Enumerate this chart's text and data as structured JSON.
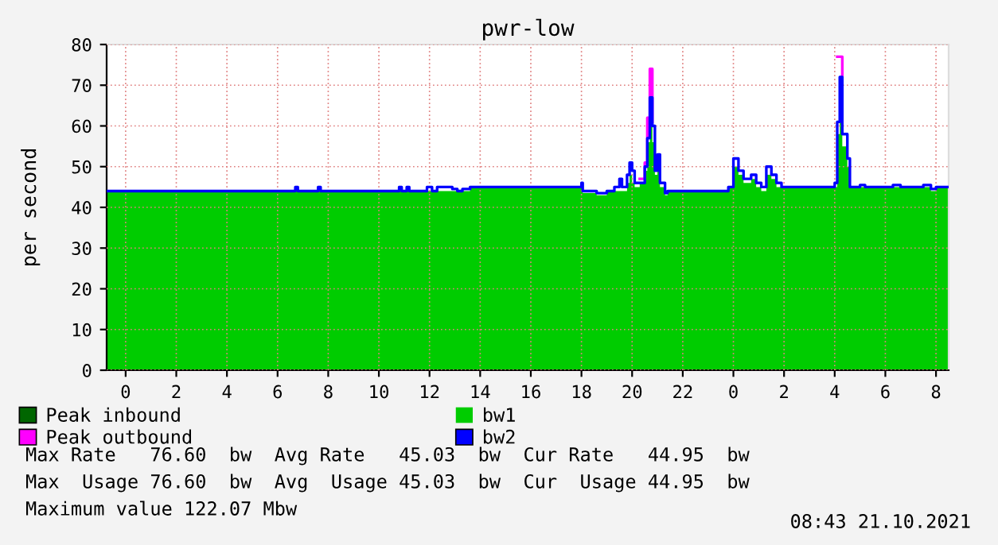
{
  "chart_data": {
    "type": "area",
    "title": "pwr-low",
    "ylabel": "per second",
    "x": [
      "2021-10-19T23:15",
      "2021-10-20T06:42",
      "2021-10-20T06:48",
      "2021-10-20T07:36",
      "2021-10-20T07:42",
      "2021-10-20T10:48",
      "2021-10-20T10:54",
      "2021-10-20T11:06",
      "2021-10-20T11:12",
      "2021-10-20T11:54",
      "2021-10-20T12:06",
      "2021-10-20T12:18",
      "2021-10-20T12:54",
      "2021-10-20T13:06",
      "2021-10-20T13:18",
      "2021-10-20T13:36",
      "2021-10-20T15:48",
      "2021-10-20T15:54",
      "2021-10-20T18:00",
      "2021-10-20T18:03",
      "2021-10-20T18:36",
      "2021-10-20T19:00",
      "2021-10-20T19:18",
      "2021-10-20T19:30",
      "2021-10-20T19:36",
      "2021-10-20T19:48",
      "2021-10-20T19:54",
      "2021-10-20T20:00",
      "2021-10-20T20:06",
      "2021-10-20T20:18",
      "2021-10-20T20:30",
      "2021-10-20T20:36",
      "2021-10-20T20:42",
      "2021-10-20T20:48",
      "2021-10-20T20:54",
      "2021-10-20T21:00",
      "2021-10-20T21:06",
      "2021-10-20T21:18",
      "2021-10-20T21:24",
      "2021-10-20T23:48",
      "2021-10-21T00:00",
      "2021-10-21T00:12",
      "2021-10-21T00:24",
      "2021-10-21T00:42",
      "2021-10-21T00:54",
      "2021-10-21T01:06",
      "2021-10-21T01:18",
      "2021-10-21T01:30",
      "2021-10-21T01:42",
      "2021-10-21T01:54",
      "2021-10-21T02:30",
      "2021-10-21T02:36",
      "2021-10-21T04:00",
      "2021-10-21T04:06",
      "2021-10-21T04:12",
      "2021-10-21T04:18",
      "2021-10-21T04:30",
      "2021-10-21T04:36",
      "2021-10-21T05:00",
      "2021-10-21T05:12",
      "2021-10-21T06:18",
      "2021-10-21T06:36",
      "2021-10-21T07:30",
      "2021-10-21T07:48",
      "2021-10-21T08:00",
      "2021-10-21T08:30"
    ],
    "series": [
      {
        "name": "Peak inbound",
        "type": "step",
        "color": "#006600",
        "values": [
          null,
          null,
          null,
          null,
          null,
          null,
          null,
          null,
          null,
          null,
          null,
          null,
          null,
          null,
          null,
          null,
          null,
          null,
          null,
          null,
          null,
          null,
          null,
          null,
          null,
          null,
          null,
          null,
          null,
          null,
          null,
          null,
          null,
          null,
          null,
          null,
          null,
          null,
          null,
          null,
          null,
          null,
          null,
          null,
          null,
          null,
          null,
          null,
          null,
          null,
          null,
          null,
          null,
          null,
          null,
          null,
          null,
          null,
          null,
          null,
          null,
          null,
          null,
          null,
          null,
          null
        ]
      },
      {
        "name": "Peak outbound",
        "type": "step",
        "color": "#ff00ff",
        "values": [
          null,
          null,
          null,
          null,
          null,
          null,
          null,
          null,
          null,
          null,
          null,
          null,
          null,
          null,
          null,
          null,
          null,
          null,
          null,
          null,
          null,
          null,
          null,
          null,
          null,
          null,
          null,
          null,
          null,
          47,
          51,
          62,
          74,
          61,
          null,
          null,
          null,
          null,
          null,
          null,
          null,
          null,
          null,
          null,
          null,
          null,
          null,
          null,
          null,
          null,
          null,
          null,
          null,
          77,
          77,
          61,
          null,
          null,
          null,
          null,
          null,
          null,
          null,
          null,
          null,
          null
        ]
      },
      {
        "name": "bw1",
        "color": "#00cc00",
        "values": [
          44,
          44,
          44,
          44,
          44,
          44,
          44,
          44,
          44,
          44,
          44,
          44,
          44,
          44,
          44,
          45,
          45,
          45,
          45,
          43.5,
          43,
          44,
          44,
          44,
          44,
          46,
          48,
          46,
          45,
          46,
          49,
          56,
          62,
          56,
          48,
          50,
          45,
          43,
          44,
          45,
          50,
          48,
          46,
          47,
          45,
          44,
          48,
          47,
          45,
          45,
          45,
          45,
          45,
          58,
          66,
          55,
          50,
          45,
          45,
          45,
          45,
          45,
          45,
          44,
          45,
          45
        ]
      },
      {
        "name": "bw2",
        "type": "step",
        "color": "#0000ff",
        "values": [
          44,
          45,
          44,
          45,
          44,
          45,
          44,
          45,
          44,
          45,
          44,
          45,
          44.5,
          44,
          44.5,
          45,
          45,
          45,
          46,
          44,
          43.5,
          44,
          45,
          47,
          45,
          48,
          51,
          49,
          46,
          46,
          50,
          57,
          67,
          60,
          49,
          53,
          46,
          43.5,
          44,
          45,
          52,
          49,
          47,
          48,
          46,
          45,
          50,
          48,
          46,
          45,
          45,
          45,
          46,
          61,
          72,
          58,
          52,
          45,
          45.5,
          45,
          45.5,
          45,
          45.5,
          44.5,
          45,
          45
        ]
      }
    ],
    "xlim": [
      "2021-10-19T23:15",
      "2021-10-21T08:30"
    ],
    "xticks": [
      {
        "value": "2021-10-20T00:00",
        "label": "0"
      },
      {
        "value": "2021-10-20T02:00",
        "label": "2"
      },
      {
        "value": "2021-10-20T04:00",
        "label": "4"
      },
      {
        "value": "2021-10-20T06:00",
        "label": "6"
      },
      {
        "value": "2021-10-20T08:00",
        "label": "8"
      },
      {
        "value": "2021-10-20T10:00",
        "label": "10"
      },
      {
        "value": "2021-10-20T12:00",
        "label": "12"
      },
      {
        "value": "2021-10-20T14:00",
        "label": "14"
      },
      {
        "value": "2021-10-20T16:00",
        "label": "16"
      },
      {
        "value": "2021-10-20T18:00",
        "label": "18"
      },
      {
        "value": "2021-10-20T20:00",
        "label": "20"
      },
      {
        "value": "2021-10-20T22:00",
        "label": "22"
      },
      {
        "value": "2021-10-21T00:00",
        "label": "0"
      },
      {
        "value": "2021-10-21T02:00",
        "label": "2"
      },
      {
        "value": "2021-10-21T04:00",
        "label": "4"
      },
      {
        "value": "2021-10-21T06:00",
        "label": "6"
      },
      {
        "value": "2021-10-21T08:00",
        "label": "8"
      }
    ],
    "ylim": [
      0,
      80
    ],
    "yticks": [
      0,
      10,
      20,
      30,
      40,
      50,
      60,
      70,
      80
    ],
    "grid": true,
    "legend": "bottom",
    "annotations": [
      "Max Rate   76.60  bw  Avg Rate   45.03  bw  Cur Rate   44.95  bw",
      "Max  Usage 76.60  bw  Avg  Usage 45.03  bw  Cur  Usage 44.95  bw",
      "Maximum value 122.07 Mbw",
      "08:43 21.10.2021"
    ]
  }
}
